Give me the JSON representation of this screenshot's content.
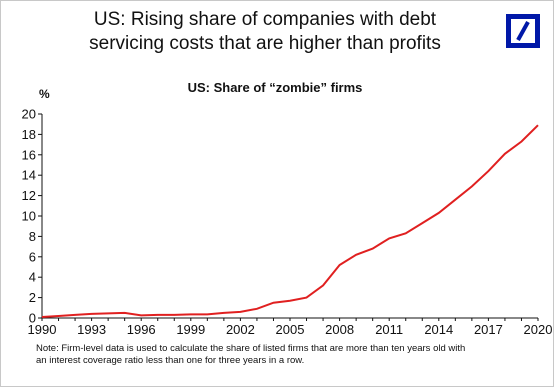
{
  "headline_line1": "US: Rising share of companies with debt",
  "headline_line2": "servicing costs that are higher than profits",
  "logo": {
    "icon": "deutsche-bank-slash-icon",
    "color": "#0018a8"
  },
  "note_line1": "Note: Firm-level data is used to calculate the share of listed firms that are more than ten years old with",
  "note_line2": "an interest coverage ratio less than one for three years in a row.",
  "chart_data": {
    "type": "line",
    "title": "US: Share of “zombie” firms",
    "ylabel": "%",
    "xlabel": "",
    "ylim": [
      0,
      20
    ],
    "xlim": [
      1990,
      2020
    ],
    "x_ticks": [
      1990,
      1993,
      1996,
      1999,
      2002,
      2005,
      2008,
      2011,
      2014,
      2017,
      2020
    ],
    "y_ticks": [
      0,
      2,
      4,
      6,
      8,
      10,
      12,
      14,
      16,
      18,
      20
    ],
    "grid": false,
    "line_color": "#e02020",
    "x": [
      1990,
      1991,
      1992,
      1993,
      1994,
      1995,
      1996,
      1997,
      1998,
      1999,
      2000,
      2001,
      2002,
      2003,
      2004,
      2005,
      2006,
      2007,
      2008,
      2009,
      2010,
      2011,
      2012,
      2013,
      2014,
      2015,
      2016,
      2017,
      2018,
      2019,
      2020
    ],
    "values": [
      0.1,
      0.2,
      0.3,
      0.4,
      0.45,
      0.5,
      0.25,
      0.3,
      0.3,
      0.35,
      0.35,
      0.5,
      0.6,
      0.9,
      1.5,
      1.7,
      2.0,
      3.2,
      5.2,
      6.2,
      6.8,
      7.8,
      8.3,
      9.3,
      10.3,
      11.6,
      12.9,
      14.4,
      16.1,
      17.3,
      18.9
    ]
  }
}
